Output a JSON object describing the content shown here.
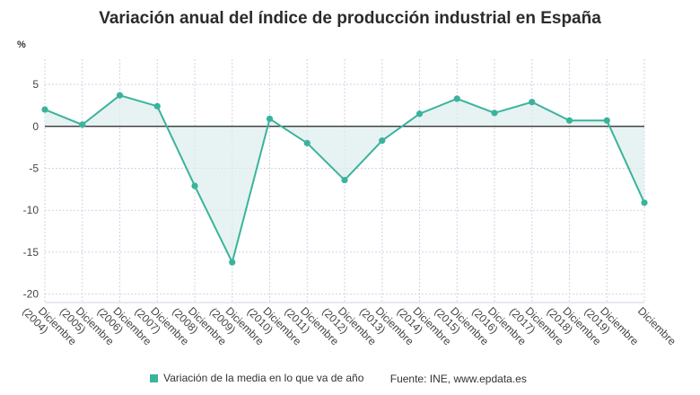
{
  "page": {
    "title": "Variación anual del índice de producción industrial en España"
  },
  "legend": {
    "series_label": "Variación de la media en lo que va de año",
    "source": "Fuente: INE, www.epdata.es"
  },
  "colors": {
    "series": "#3bb39c",
    "fill": "#dceeed",
    "grid": "#d6cfe6",
    "zero_line": "#222222",
    "axis_text": "#444444"
  },
  "chart_data": {
    "type": "line",
    "title": "Variación anual del índice de producción industrial en España",
    "ylabel": "%",
    "xlabel": "",
    "ylim": [
      -21,
      8
    ],
    "yticks": [
      5,
      0,
      -5,
      -10,
      -15,
      -20
    ],
    "grid": true,
    "legend_position": "bottom",
    "categories": [
      [
        "Diciembre",
        "(2004)"
      ],
      [
        "Diciembre",
        "(2005)"
      ],
      [
        "Diciembre",
        "(2006)"
      ],
      [
        "Diciembre",
        "(2007)"
      ],
      [
        "Diciembre",
        "(2008)"
      ],
      [
        "Diciembre",
        "(2009)"
      ],
      [
        "Diciembre",
        "(2010)"
      ],
      [
        "Diciembre",
        "(2011)"
      ],
      [
        "Diciembre",
        "(2012)"
      ],
      [
        "Diciembre",
        "(2013)"
      ],
      [
        "Diciembre",
        "(2014)"
      ],
      [
        "Diciembre",
        "(2015)"
      ],
      [
        "Diciembre",
        "(2016)"
      ],
      [
        "Diciembre",
        "(2017)"
      ],
      [
        "Diciembre",
        "(2018)"
      ],
      [
        "Diciembre",
        "(2019)"
      ],
      [
        "Diciembre",
        ""
      ]
    ],
    "series": [
      {
        "name": "Variación de la media en lo que va de año",
        "values": [
          2.0,
          0.2,
          3.7,
          2.4,
          -7.1,
          -16.2,
          0.9,
          -2.0,
          -6.4,
          -1.7,
          1.5,
          3.3,
          1.6,
          2.9,
          0.7,
          0.7,
          -9.1
        ]
      }
    ]
  }
}
